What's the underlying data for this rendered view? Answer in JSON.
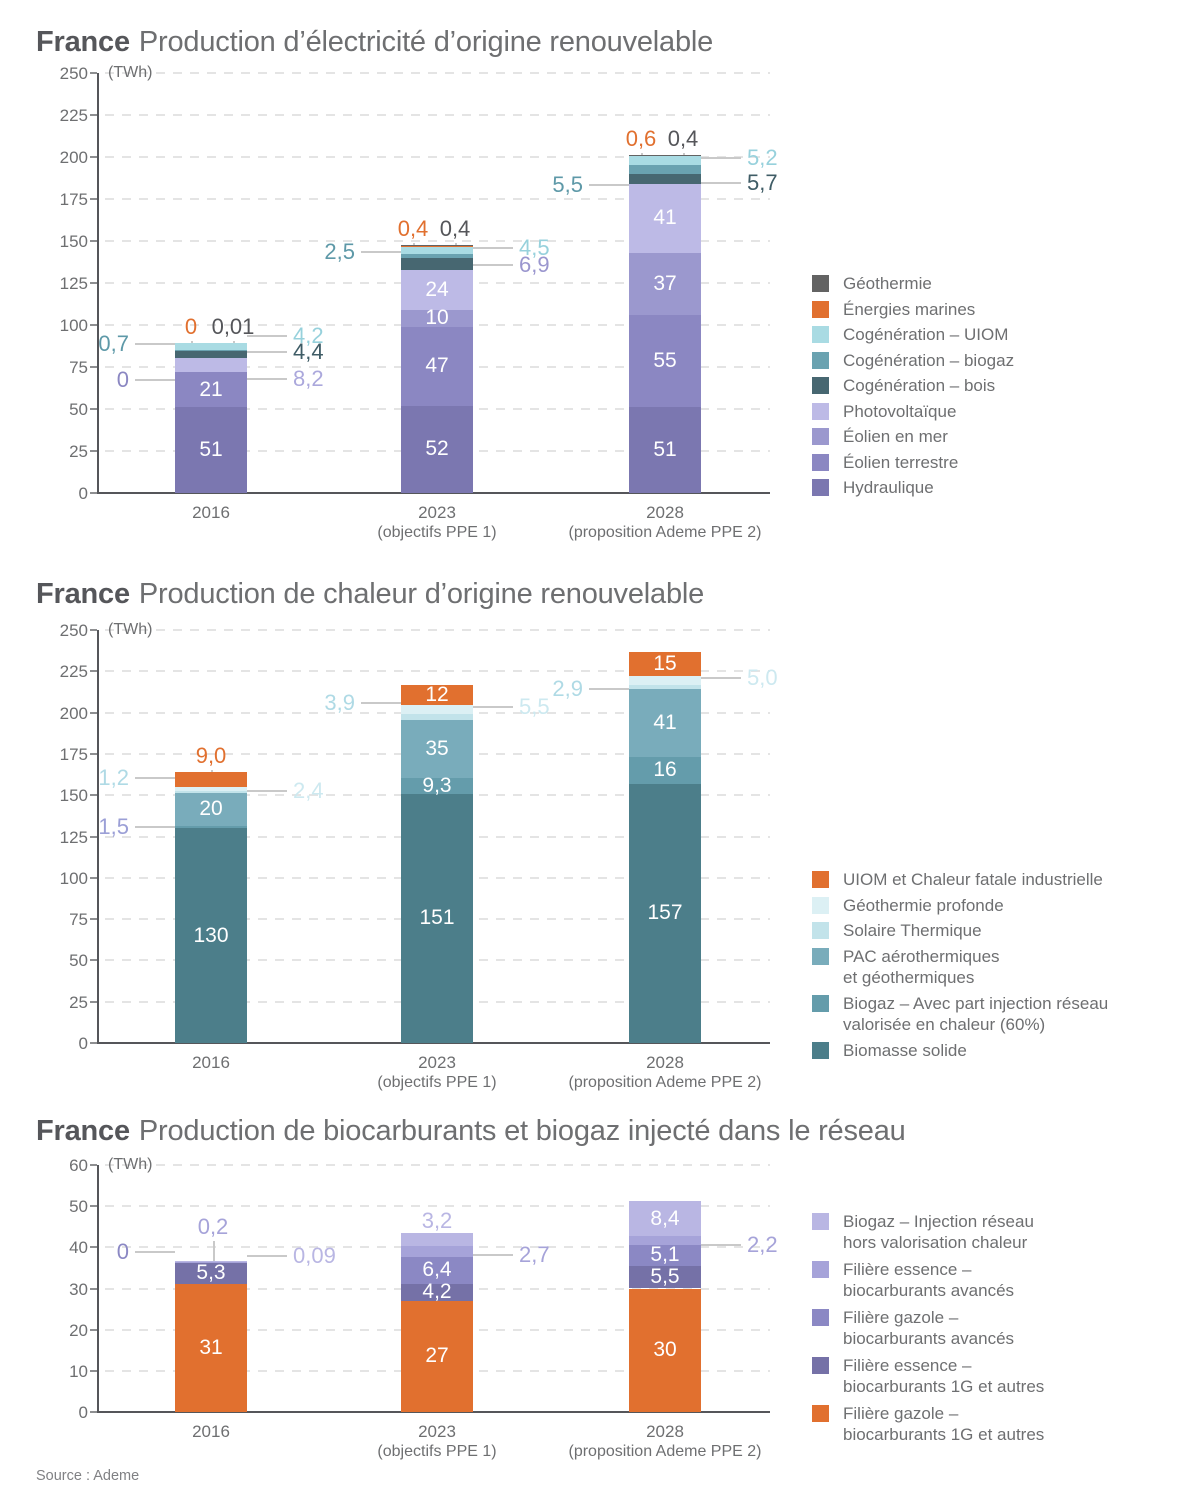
{
  "page": {
    "source": "Source : Ademe"
  },
  "chart_data": [
    {
      "type": "bar",
      "stacked": true,
      "title_bold": "France",
      "title": "Production d’électricité d’origine renouvelable",
      "unit": "(TWh)",
      "ylim": [
        0,
        250
      ],
      "ytick_step": 25,
      "grid": "dashed",
      "legend_position": "right",
      "categories": [
        {
          "label": "2016",
          "sublabel": ""
        },
        {
          "label": "2023",
          "sublabel": "(objectifs PPE 1)"
        },
        {
          "label": "2028",
          "sublabel": "(proposition Ademe PPE 2)"
        }
      ],
      "series": [
        {
          "name": "Hydraulique",
          "color": "#7B77B0",
          "label_color": "#7B77B0",
          "values": [
            51,
            52,
            51
          ]
        },
        {
          "name": "Éolien terrestre",
          "color": "#8B87C2",
          "label_color": "#8B87C2",
          "values": [
            21,
            47,
            55
          ]
        },
        {
          "name": "Éolien en mer",
          "color": "#9B98CE",
          "label_color": "#8B87C2",
          "values": [
            0,
            10,
            37
          ]
        },
        {
          "name": "Photovoltaïque",
          "color": "#BDBAE6",
          "label_color": "#ABA8DC",
          "values": [
            8.2,
            24,
            41
          ]
        },
        {
          "name": "Cogénération – bois",
          "color": "#476771",
          "label_color": "#3F5C66",
          "values": [
            4.4,
            6.9,
            5.7
          ]
        },
        {
          "name": "Cogénération – biogaz",
          "color": "#6AA2B0",
          "label_color": "#5E99A8",
          "values": [
            0.7,
            2.5,
            5.5
          ]
        },
        {
          "name": "Cogénération – UIOM",
          "color": "#A9DBE3",
          "label_color": "#97D1DC",
          "values": [
            4.2,
            4.5,
            5.2
          ]
        },
        {
          "name": "Énergies marines",
          "color": "#E1702F",
          "label_color": "#E1702F",
          "values": [
            0,
            0.4,
            0.6
          ]
        },
        {
          "name": "Géothermie",
          "color": "#636363",
          "label_color": "#55565A",
          "values": [
            0.01,
            0.4,
            0.4
          ]
        }
      ],
      "legend": [
        {
          "lines": [
            "Géothermie"
          ],
          "color": "#636363"
        },
        {
          "lines": [
            "Énergies marines"
          ],
          "color": "#E1702F"
        },
        {
          "lines": [
            "Cogénération – UIOM"
          ],
          "color": "#A9DBE3"
        },
        {
          "lines": [
            "Cogénération – biogaz"
          ],
          "color": "#6AA2B0"
        },
        {
          "lines": [
            "Cogénération – bois"
          ],
          "color": "#476771"
        },
        {
          "lines": [
            "Photovoltaïque"
          ],
          "color": "#BDBAE6"
        },
        {
          "lines": [
            "Éolien en mer"
          ],
          "color": "#9B98CE"
        },
        {
          "lines": [
            "Éolien terrestre"
          ],
          "color": "#8B87C2"
        },
        {
          "lines": [
            "Hydraulique"
          ],
          "color": "#7B77B0"
        }
      ],
      "labels": [
        [
          {
            "s": 0,
            "t": "51",
            "p": "i"
          },
          {
            "s": 1,
            "t": "21",
            "p": "i"
          },
          {
            "s": 2,
            "t": "0",
            "p": "l",
            "dy": 8
          },
          {
            "s": 5,
            "t": "0,7",
            "p": "l",
            "dy": -6
          },
          {
            "s": 3,
            "t": "8,2",
            "p": "r",
            "dy": 14
          },
          {
            "s": 4,
            "t": "4,4",
            "p": "r",
            "dy": -3
          },
          {
            "s": 6,
            "t": "4,2",
            "p": "r",
            "dy": -10
          },
          {
            "s": 7,
            "t": "0",
            "p": "t",
            "dx": -20
          },
          {
            "s": 8,
            "t": "0,01",
            "p": "t",
            "dx": 22
          }
        ],
        [
          {
            "s": 0,
            "t": "52",
            "p": "i"
          },
          {
            "s": 1,
            "t": "47",
            "p": "i"
          },
          {
            "s": 2,
            "t": "10",
            "p": "i"
          },
          {
            "s": 3,
            "t": "24",
            "p": "i"
          },
          {
            "s": 5,
            "t": "2,5",
            "p": "l",
            "dy": -4
          },
          {
            "s": 4,
            "t": "6,9",
            "p": "r",
            "dy": 1,
            "c": "#9A96CE"
          },
          {
            "s": 6,
            "t": "4,5",
            "p": "r",
            "dy": -2
          },
          {
            "s": 7,
            "t": "0,4",
            "p": "t",
            "dx": -24
          },
          {
            "s": 8,
            "t": "0,4",
            "p": "t",
            "dx": 18
          }
        ],
        [
          {
            "s": 0,
            "t": "51",
            "p": "i"
          },
          {
            "s": 1,
            "t": "55",
            "p": "i"
          },
          {
            "s": 2,
            "t": "37",
            "p": "i"
          },
          {
            "s": 3,
            "t": "41",
            "p": "i"
          },
          {
            "s": 5,
            "t": "5,5",
            "p": "l",
            "dy": 15
          },
          {
            "s": 4,
            "t": "5,7",
            "p": "r",
            "dy": 4
          },
          {
            "s": 6,
            "t": "5,2",
            "p": "r",
            "dy": -3
          },
          {
            "s": 7,
            "t": "0,6",
            "p": "t",
            "dx": -24
          },
          {
            "s": 8,
            "t": "0,4",
            "p": "t",
            "dx": 18
          }
        ]
      ]
    },
    {
      "type": "bar",
      "stacked": true,
      "title_bold": "France",
      "title": "Production de chaleur d’origine renouvelable",
      "unit": "(TWh)",
      "ylim": [
        0,
        250
      ],
      "ytick_step": 25,
      "grid": "dashed",
      "legend_position": "right",
      "categories": [
        {
          "label": "2016",
          "sublabel": ""
        },
        {
          "label": "2023",
          "sublabel": "(objectifs PPE 1)"
        },
        {
          "label": "2028",
          "sublabel": "(proposition Ademe PPE 2)"
        }
      ],
      "series": [
        {
          "name": "Biomasse solide",
          "color": "#4C7E8A",
          "label_color": "#4C7E8A",
          "values": [
            130,
            151,
            157
          ]
        },
        {
          "name": "Biogaz – Avec part injection réseau valorisée en chaleur (60%)",
          "color": "#649CAB",
          "label_color": "#649CAB",
          "values": [
            1.5,
            9.3,
            16
          ]
        },
        {
          "name": "PAC aérothermiques et géothermiques",
          "color": "#79ACBB",
          "label_color": "#79ACBB",
          "values": [
            20,
            35,
            41
          ]
        },
        {
          "name": "Solaire Thermique",
          "color": "#C2E3EA",
          "label_color": "#AFDAE5",
          "values": [
            1.2,
            3.9,
            2.9
          ]
        },
        {
          "name": "Géothermie profonde",
          "color": "#DCF0F4",
          "label_color": "#CDE9F0",
          "values": [
            2.4,
            5.5,
            5.0
          ]
        },
        {
          "name": "UIOM et Chaleur fatale industrielle",
          "color": "#E1702F",
          "label_color": "#E1702F",
          "values": [
            9.0,
            12,
            15
          ]
        }
      ],
      "legend": [
        {
          "lines": [
            "UIOM et Chaleur fatale industrielle"
          ],
          "color": "#E1702F"
        },
        {
          "lines": [
            "Géothermie profonde"
          ],
          "color": "#DCF0F4"
        },
        {
          "lines": [
            "Solaire Thermique"
          ],
          "color": "#C2E3EA"
        },
        {
          "lines": [
            "PAC aérothermiques",
            "et géothermiques"
          ],
          "color": "#79ACBB"
        },
        {
          "lines": [
            "Biogaz – Avec part injection réseau",
            "valorisée en chaleur (60%)"
          ],
          "color": "#649CAB"
        },
        {
          "lines": [
            "Biomasse solide"
          ],
          "color": "#4C7E8A"
        }
      ],
      "labels": [
        [
          {
            "s": 0,
            "t": "130",
            "p": "i"
          },
          {
            "s": 2,
            "t": "20",
            "p": "i"
          },
          {
            "s": 1,
            "t": "1,5",
            "p": "l",
            "dy": 0,
            "c": "#9B9FD6"
          },
          {
            "s": 3,
            "t": "1,2",
            "p": "l",
            "dy": -14
          },
          {
            "s": 4,
            "t": "2,4",
            "p": "r",
            "dy": 2
          },
          {
            "s": 5,
            "t": "9,0",
            "p": "t",
            "dx": 0
          }
        ],
        [
          {
            "s": 0,
            "t": "151",
            "p": "i"
          },
          {
            "s": 1,
            "t": "9,3",
            "p": "i"
          },
          {
            "s": 2,
            "t": "35",
            "p": "i"
          },
          {
            "s": 5,
            "t": "12",
            "p": "i"
          },
          {
            "s": 3,
            "t": "3,9",
            "p": "l",
            "dy": -14
          },
          {
            "s": 4,
            "t": "5,5",
            "p": "r",
            "dy": -2
          }
        ],
        [
          {
            "s": 0,
            "t": "157",
            "p": "i"
          },
          {
            "s": 1,
            "t": "16",
            "p": "i"
          },
          {
            "s": 2,
            "t": "41",
            "p": "i"
          },
          {
            "s": 5,
            "t": "15",
            "p": "i"
          },
          {
            "s": 3,
            "t": "2,9",
            "p": "l",
            "dy": 2
          },
          {
            "s": 4,
            "t": "5,0",
            "p": "r",
            "dy": -3
          }
        ]
      ]
    },
    {
      "type": "bar",
      "stacked": true,
      "title_bold": "France",
      "title": "Production de biocarburants et biogaz injecté dans le réseau",
      "unit": "(TWh)",
      "ylim": [
        0,
        60
      ],
      "ytick_step": 10,
      "grid": "dashed",
      "legend_position": "right",
      "categories": [
        {
          "label": "2016",
          "sublabel": ""
        },
        {
          "label": "2023",
          "sublabel": "(objectifs PPE 1)"
        },
        {
          "label": "2028",
          "sublabel": "(proposition Ademe PPE 2)"
        }
      ],
      "series": [
        {
          "name": "Filière gazole – biocarburants 1G et autres",
          "color": "#E1702F",
          "label_color": "#E1702F",
          "values": [
            31,
            27,
            30
          ]
        },
        {
          "name": "Filière essence – biocarburants 1G et autres",
          "color": "#7571A7",
          "label_color": "#7571A7",
          "values": [
            5.3,
            4.2,
            5.5
          ]
        },
        {
          "name": "Filière gazole – biocarburants avancés",
          "color": "#8B88C4",
          "label_color": "#8B88C4",
          "values": [
            0,
            6.4,
            5.1
          ]
        },
        {
          "name": "Filière essence – biocarburants avancés",
          "color": "#A6A3D9",
          "label_color": "#A6A3D9",
          "values": [
            0.2,
            2.7,
            2.2
          ]
        },
        {
          "name": "Biogaz – Injection réseau hors valorisation chaleur",
          "color": "#B9B6E3",
          "label_color": "#B9B6E3",
          "values": [
            0.09,
            3.2,
            8.4
          ]
        }
      ],
      "legend": [
        {
          "lines": [
            "Biogaz – Injection réseau",
            "hors  valorisation chaleur"
          ],
          "color": "#B9B6E3"
        },
        {
          "lines": [
            "Filière essence –",
            "biocarburants avancés"
          ],
          "color": "#A6A3D9"
        },
        {
          "lines": [
            "Filière gazole –",
            "biocarburants avancés"
          ],
          "color": "#8B88C4"
        },
        {
          "lines": [
            "Filière essence –",
            "biocarburants 1G et autres"
          ],
          "color": "#7571A7"
        },
        {
          "lines": [
            "Filière gazole –",
            "biocarburants 1G et autres"
          ],
          "color": "#E1702F"
        }
      ],
      "labels": [
        [
          {
            "s": 0,
            "t": "31",
            "p": "i"
          },
          {
            "s": 1,
            "t": "5,3",
            "p": "i"
          },
          {
            "s": 2,
            "t": "0",
            "p": "l",
            "dy": -11
          },
          {
            "s": 4,
            "t": "0,09",
            "p": "r",
            "dy": -6
          },
          {
            "s": 3,
            "t": "0,2",
            "p": "t",
            "dx": 2,
            "dyt": -18
          }
        ],
        [
          {
            "s": 0,
            "t": "27",
            "p": "i"
          },
          {
            "s": 1,
            "t": "4,2",
            "p": "i"
          },
          {
            "s": 2,
            "t": "6,4",
            "p": "i"
          },
          {
            "s": 3,
            "t": "2,7",
            "p": "r",
            "dy": 3
          },
          {
            "s": 4,
            "t": "3,2",
            "p": "t",
            "dx": 0,
            "dyt": 4
          }
        ],
        [
          {
            "s": 0,
            "t": "30",
            "p": "i"
          },
          {
            "s": 1,
            "t": "5,5",
            "p": "i"
          },
          {
            "s": 2,
            "t": "5,1",
            "p": "i"
          },
          {
            "s": 4,
            "t": "8,4",
            "p": "i"
          },
          {
            "s": 3,
            "t": "2,2",
            "p": "r",
            "dy": 5
          }
        ]
      ]
    }
  ]
}
